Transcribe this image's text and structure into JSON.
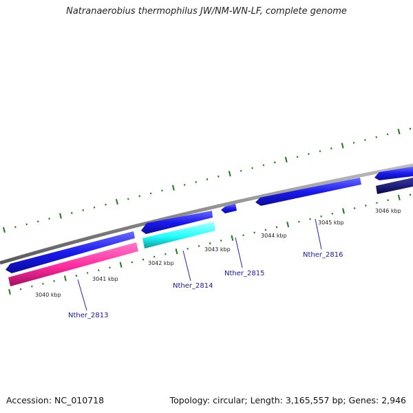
{
  "title": "Natranaerobius thermophilus JW/NM-WN-LF, complete genome",
  "footer": {
    "accession": "Accession: NC_010718",
    "summary": "Topology: circular; Length: 3,165,557 bp; Genes: 2,946"
  },
  "scale_labels": [
    "3040 kbp",
    "3041 kbp",
    "3042 kbp",
    "3043 kbp",
    "3044 kbp",
    "3045 kbp",
    "3046 kbp"
  ],
  "gene_labels": [
    "Nther_2813",
    "Nther_2814",
    "Nther_2815",
    "Nther_2816"
  ],
  "colors": {
    "backbone": "#8c8c8c",
    "forward_cds": "#1a1aee",
    "reverse_cds": "#ff2aa0",
    "reverse_cds_2": "#22ffff",
    "dark_cds": "#0c0c7a",
    "ticks": "#1a7a1a",
    "gene_label": "#1515aa"
  }
}
